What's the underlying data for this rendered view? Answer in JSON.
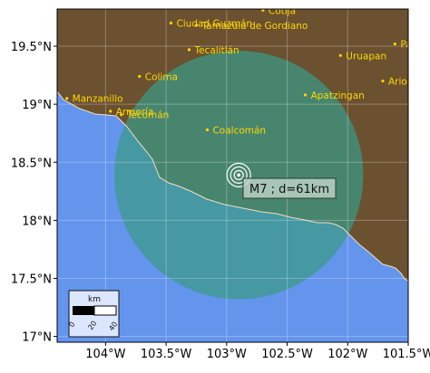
{
  "map": {
    "lon_range": [
      -104.4,
      -101.5
    ],
    "lat_range": [
      16.95,
      19.82
    ],
    "lon_ticks": [
      {
        "value": -104.0,
        "label": "104°W"
      },
      {
        "value": -103.5,
        "label": "103.5°W"
      },
      {
        "value": -103.0,
        "label": "103°W"
      },
      {
        "value": -102.5,
        "label": "102.5°W"
      },
      {
        "value": -102.0,
        "label": "102°W"
      },
      {
        "value": -101.5,
        "label": "101.5°W"
      }
    ],
    "lat_ticks": [
      {
        "value": 17.0,
        "label": "17°N"
      },
      {
        "value": 17.5,
        "label": "17.5°N"
      },
      {
        "value": 18.0,
        "label": "18°N"
      },
      {
        "value": 18.5,
        "label": "18.5°N"
      },
      {
        "value": 19.0,
        "label": "19°N"
      },
      {
        "value": 19.5,
        "label": "19.5°N"
      }
    ],
    "colors": {
      "land": "#6b5130",
      "ocean": "#6495ed",
      "felt_area": "#3a9a86",
      "city": "#ffd700",
      "grid": "#ffffff"
    },
    "epicenter": {
      "lon": -102.9,
      "lat": 18.39
    },
    "felt_radius_deg": 1.07,
    "annotation": "M7 ; d=61km",
    "cities": [
      {
        "name": "Cotija",
        "lon": -102.7,
        "lat": 19.81
      },
      {
        "name": "Ciudad Guzmán",
        "lon": -103.46,
        "lat": 19.7
      },
      {
        "name": "Tamazula de Gordiano",
        "lon": -103.25,
        "lat": 19.68
      },
      {
        "name": "Tecalitlán",
        "lon": -103.31,
        "lat": 19.47
      },
      {
        "name": "Uruapan",
        "lon": -102.06,
        "lat": 19.42
      },
      {
        "name": "Pátz",
        "lon": -101.61,
        "lat": 19.52
      },
      {
        "name": "Colima",
        "lon": -103.72,
        "lat": 19.24
      },
      {
        "name": "Ario de",
        "lon": -101.71,
        "lat": 19.2
      },
      {
        "name": "Manzanillo",
        "lon": -104.32,
        "lat": 19.05
      },
      {
        "name": "Apatzingan",
        "lon": -102.35,
        "lat": 19.08
      },
      {
        "name": "Armería",
        "lon": -103.96,
        "lat": 18.94
      },
      {
        "name": "Tecomán",
        "lon": -103.87,
        "lat": 18.91
      },
      {
        "name": "Coalcomán",
        "lon": -103.16,
        "lat": 18.78
      }
    ],
    "scalebar": {
      "unit": "km",
      "labels": [
        "0",
        "20",
        "40"
      ]
    }
  }
}
